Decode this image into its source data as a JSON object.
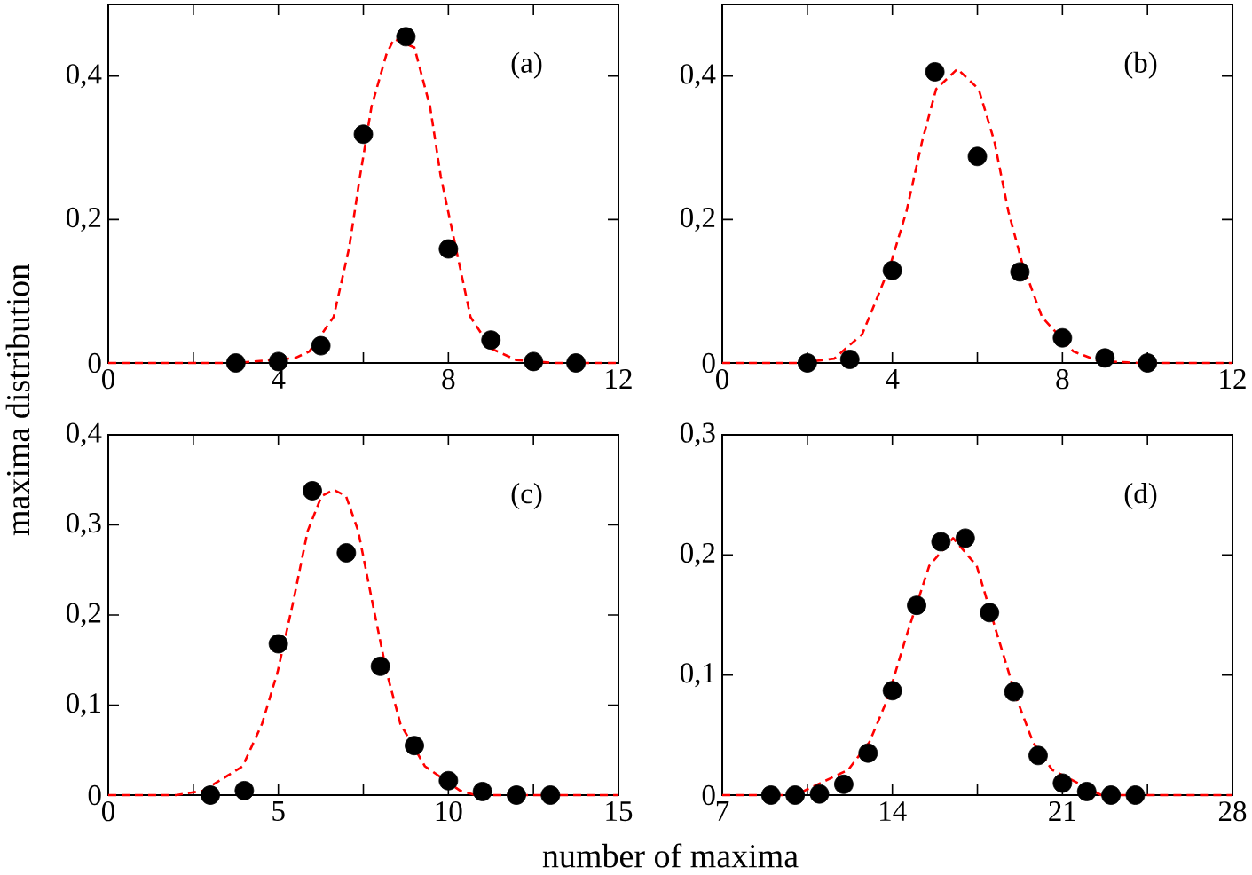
{
  "chart_data": [
    {
      "type": "scatter",
      "ylabel": "maxima distribution",
      "annotations": [
        "(a)"
      ],
      "xlim": [
        0,
        12
      ],
      "ylim": [
        0,
        0.5
      ],
      "xticks": [
        0,
        4,
        8,
        12
      ],
      "yticks": [
        0,
        {
          "value": 0.2,
          "label": "0,2"
        },
        {
          "value": 0.4,
          "label": "0,4"
        }
      ],
      "series": [
        {
          "color": "#000000",
          "marker": "circle",
          "x": [
            3,
            4,
            5,
            6,
            7,
            8,
            9,
            10,
            11
          ],
          "values": [
            0,
            0.002,
            0.024,
            0.319,
            0.455,
            0.159,
            0.032,
            0.002,
            0
          ]
        },
        {
          "type": "line",
          "color": "#ff0000",
          "marker": "none",
          "line_style": "dashed",
          "x": [
            0,
            3,
            4.4,
            4.73,
            5.3,
            5.67,
            5.92,
            6.19,
            6.54,
            6.72,
            7.2,
            7.57,
            7.82,
            8.52,
            9.01,
            9.6,
            10.5,
            12
          ],
          "values": [
            0,
            0,
            0.007,
            0.016,
            0.064,
            0.162,
            0.26,
            0.357,
            0.43,
            0.452,
            0.44,
            0.357,
            0.26,
            0.064,
            0.02,
            0.004,
            0,
            0
          ]
        }
      ]
    },
    {
      "type": "scatter",
      "annotations": [
        "(b)"
      ],
      "xlim": [
        0,
        12
      ],
      "ylim": [
        0,
        0.5
      ],
      "xticks": [
        0,
        4,
        8,
        12
      ],
      "yticks": [
        0,
        {
          "value": 0.2,
          "label": "0,2"
        },
        {
          "value": 0.4,
          "label": "0,4"
        }
      ],
      "series": [
        {
          "color": "#000000",
          "marker": "circle",
          "x": [
            2,
            3,
            4,
            5,
            6,
            7,
            8,
            9,
            10
          ],
          "values": [
            0,
            0.005,
            0.129,
            0.406,
            0.288,
            0.127,
            0.035,
            0.007,
            0
          ]
        },
        {
          "type": "line",
          "color": "#ff0000",
          "marker": "none",
          "line_style": "dashed",
          "x": [
            0,
            1.8,
            2.63,
            3.29,
            3.63,
            3.96,
            4.33,
            4.7,
            5.03,
            5.53,
            6.03,
            6.4,
            6.73,
            7.06,
            7.52,
            8.26,
            8.84,
            9.8,
            12
          ],
          "values": [
            0,
            0,
            0.006,
            0.04,
            0.089,
            0.138,
            0.211,
            0.309,
            0.382,
            0.41,
            0.382,
            0.309,
            0.211,
            0.138,
            0.064,
            0.016,
            0.003,
            0,
            0
          ]
        }
      ]
    },
    {
      "type": "scatter",
      "xlabel": "number of maxima",
      "annotations": [
        "(c)"
      ],
      "xlim": [
        0,
        15
      ],
      "ylim": [
        0,
        0.4
      ],
      "xticks": [
        0,
        5,
        10,
        15
      ],
      "yticks": [
        0,
        {
          "value": 0.1,
          "label": "0,1"
        },
        {
          "value": 0.2,
          "label": "0,2"
        },
        {
          "value": 0.3,
          "label": "0,3"
        },
        {
          "value": 0.4,
          "label": "0,4"
        }
      ],
      "series": [
        {
          "color": "#000000",
          "marker": "circle",
          "x": [
            3,
            4,
            5,
            6,
            7,
            8,
            9,
            10,
            11,
            12,
            13
          ],
          "values": [
            0,
            0.005,
            0.168,
            0.338,
            0.269,
            0.143,
            0.055,
            0.016,
            0.004,
            0,
            0
          ]
        },
        {
          "type": "line",
          "color": "#ff0000",
          "marker": "none",
          "line_style": "dashed",
          "x": [
            0,
            2,
            2.8,
            3.95,
            4.52,
            4.98,
            5.44,
            5.86,
            6.27,
            6.63,
            6.99,
            7.35,
            7.76,
            8.18,
            8.59,
            9.31,
            10.34,
            10.8,
            15
          ],
          "values": [
            0,
            0,
            0.005,
            0.032,
            0.079,
            0.137,
            0.215,
            0.293,
            0.332,
            0.339,
            0.332,
            0.293,
            0.215,
            0.137,
            0.079,
            0.032,
            0.005,
            0,
            0
          ]
        }
      ]
    },
    {
      "type": "scatter",
      "annotations": [
        "(d)"
      ],
      "xlim": [
        7,
        28
      ],
      "ylim": [
        0,
        0.3
      ],
      "xticks": [
        7,
        14,
        21,
        28
      ],
      "yticks": [
        0,
        {
          "value": 0.1,
          "label": "0,1"
        },
        {
          "value": 0.2,
          "label": "0,2"
        },
        {
          "value": 0.3,
          "label": "0,3"
        }
      ],
      "series": [
        {
          "color": "#000000",
          "marker": "circle",
          "x": [
            9,
            10,
            11,
            12,
            13,
            14,
            15,
            16,
            17,
            18,
            19,
            20,
            21,
            22,
            23,
            24
          ],
          "values": [
            0,
            0,
            0.001,
            0.009,
            0.035,
            0.087,
            0.158,
            0.211,
            0.214,
            0.152,
            0.086,
            0.033,
            0.01,
            0.003,
            0,
            0
          ]
        },
        {
          "type": "line",
          "color": "#ff0000",
          "marker": "none",
          "line_style": "dashed",
          "x": [
            7,
            10,
            12.18,
            13.05,
            13.78,
            14.57,
            15.52,
            16.5,
            17.47,
            18.34,
            19.14,
            19.79,
            20.58,
            22.6,
            28
          ],
          "values": [
            0,
            0,
            0.021,
            0.044,
            0.079,
            0.132,
            0.191,
            0.214,
            0.191,
            0.132,
            0.079,
            0.044,
            0.021,
            0,
            0
          ]
        }
      ]
    }
  ]
}
